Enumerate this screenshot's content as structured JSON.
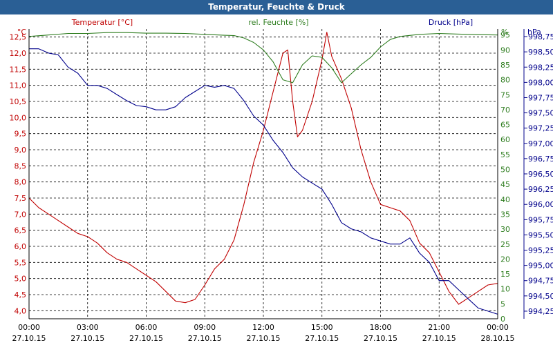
{
  "window": {
    "title": "Temperatur, Feuchte & Druck"
  },
  "colors": {
    "temperature": "#c00000",
    "humidity": "#2e7d1f",
    "pressure": "#00008b",
    "header": "#2a5f95"
  },
  "chart_data": {
    "type": "line",
    "title": "Temperatur, Feuchte & Druck",
    "grid": true,
    "x_range_hours": [
      0,
      24
    ],
    "x_ticks": [
      {
        "h": 0,
        "time": "00:00",
        "date": "27.10.15"
      },
      {
        "h": 3,
        "time": "03:00",
        "date": "27.10.15"
      },
      {
        "h": 6,
        "time": "06:00",
        "date": "27.10.15"
      },
      {
        "h": 9,
        "time": "09:00",
        "date": "27.10.15"
      },
      {
        "h": 12,
        "time": "12:00",
        "date": "27.10.15"
      },
      {
        "h": 15,
        "time": "15:00",
        "date": "27.10.15"
      },
      {
        "h": 18,
        "time": "18:00",
        "date": "27.10.15"
      },
      {
        "h": 21,
        "time": "21:00",
        "date": "27.10.15"
      },
      {
        "h": 24,
        "time": "00:00",
        "date": "28.10.15"
      }
    ],
    "axes": {
      "temperature": {
        "label": "Temperatur [°C]",
        "unit": "°C",
        "range": [
          3.75,
          12.75
        ],
        "ticks": [
          "12,5",
          "12,0",
          "11,5",
          "11,0",
          "10,5",
          "10,0",
          "9,5",
          "9,0",
          "8,5",
          "8,0",
          "7,5",
          "7,0",
          "6,5",
          "6,0",
          "5,5",
          "5,0",
          "4,5",
          "4,0"
        ]
      },
      "humidity": {
        "label": "rel. Feuchte [%]",
        "unit": "%",
        "range": [
          0,
          97
        ],
        "ticks": [
          "95",
          "90",
          "85",
          "80",
          "75",
          "70",
          "65",
          "60",
          "55",
          "50",
          "45",
          "40",
          "35",
          "30",
          "25",
          "20",
          "15",
          "10",
          "5",
          "0"
        ]
      },
      "pressure": {
        "label": "Druck [hPa]",
        "unit": "hPa",
        "range": [
          994.125,
          998.875
        ],
        "ticks": [
          "998,75",
          "998,50",
          "998,25",
          "998,00",
          "997,75",
          "997,50",
          "997,25",
          "997,00",
          "996,75",
          "996,50",
          "996,25",
          "996,00",
          "995,75",
          "995,50",
          "995,25",
          "995,00",
          "994,75",
          "994,50",
          "994,25"
        ]
      }
    },
    "series": [
      {
        "name": "Temperatur [°C]",
        "axis": "temperature",
        "x": [
          0,
          0.5,
          1,
          1.5,
          2,
          2.5,
          3,
          3.5,
          4,
          4.5,
          5,
          5.5,
          6,
          6.5,
          7,
          7.5,
          8,
          8.5,
          9,
          9.5,
          10,
          10.5,
          11,
          11.5,
          12,
          12.5,
          13,
          13.25,
          13.5,
          13.75,
          14,
          14.5,
          15,
          15.25,
          15.5,
          16,
          16.5,
          17,
          17.5,
          18,
          18.5,
          19,
          19.5,
          20,
          20.5,
          21,
          21.5,
          22,
          22.5,
          23,
          23.5,
          24
        ],
        "y": [
          7.5,
          7.2,
          7.0,
          6.8,
          6.6,
          6.4,
          6.3,
          6.1,
          5.8,
          5.6,
          5.5,
          5.3,
          5.1,
          4.9,
          4.6,
          4.3,
          4.25,
          4.35,
          4.8,
          5.3,
          5.6,
          6.2,
          7.3,
          8.6,
          9.6,
          10.8,
          12.0,
          12.1,
          10.5,
          9.4,
          9.6,
          10.5,
          11.8,
          12.65,
          11.9,
          11.2,
          10.3,
          9.0,
          8.0,
          7.3,
          7.2,
          7.1,
          6.8,
          6.1,
          5.8,
          5.2,
          4.6,
          4.2,
          4.4,
          4.6,
          4.8,
          4.85
        ]
      },
      {
        "name": "rel. Feuchte [%]",
        "axis": "humidity",
        "x": [
          0,
          1,
          2,
          3,
          4,
          5,
          6,
          7,
          8,
          9,
          10,
          10.5,
          11,
          11.5,
          12,
          12.5,
          13,
          13.5,
          14,
          14.5,
          15,
          15.5,
          16,
          16.5,
          17,
          17.5,
          18,
          18.5,
          19,
          20,
          21,
          22,
          23,
          24
        ],
        "y": [
          94.5,
          95,
          95.5,
          95.5,
          95.8,
          95.8,
          95.6,
          95.6,
          95.5,
          95.2,
          94.9,
          94.8,
          94.0,
          92.5,
          90.0,
          86.0,
          80.0,
          79.0,
          85.0,
          88.0,
          87.5,
          84.0,
          79.0,
          82.0,
          85.0,
          87.5,
          91.0,
          93.5,
          94.5,
          95.2,
          95.5,
          95.3,
          95.1,
          95.0
        ]
      },
      {
        "name": "Druck [hPa]",
        "axis": "pressure",
        "x": [
          0,
          0.5,
          1,
          1.5,
          2,
          2.5,
          3,
          3.5,
          4,
          4.5,
          5,
          5.5,
          6,
          6.5,
          7,
          7.5,
          8,
          8.5,
          9,
          9.5,
          10,
          10.5,
          11,
          11.5,
          12,
          12.5,
          13,
          13.5,
          14,
          14.5,
          15,
          15.5,
          16,
          16.5,
          17,
          17.5,
          18,
          18.5,
          19,
          19.5,
          20,
          20.5,
          21,
          21.5,
          22,
          22.5,
          23,
          23.5,
          24
        ],
        "y": [
          998.55,
          998.55,
          998.48,
          998.45,
          998.25,
          998.15,
          997.95,
          997.95,
          997.9,
          997.8,
          997.7,
          997.62,
          997.6,
          997.55,
          997.55,
          997.6,
          997.75,
          997.85,
          997.95,
          997.92,
          997.95,
          997.9,
          997.7,
          997.45,
          997.3,
          997.05,
          996.85,
          996.6,
          996.45,
          996.35,
          996.25,
          996.0,
          995.7,
          995.6,
          995.55,
          995.45,
          995.4,
          995.35,
          995.35,
          995.45,
          995.2,
          995.05,
          994.75,
          994.75,
          994.6,
          994.45,
          994.3,
          994.25,
          994.2
        ]
      }
    ]
  }
}
